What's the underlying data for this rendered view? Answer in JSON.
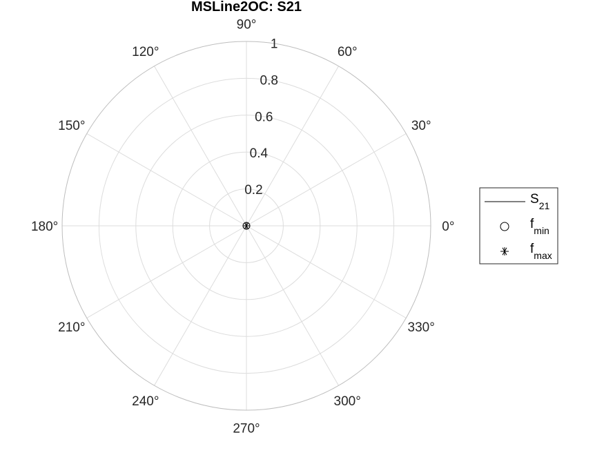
{
  "chart_data": {
    "type": "polar",
    "title": "MSLine2OC: S21",
    "r_ticks": [
      0.2,
      0.4,
      0.6,
      0.8,
      1
    ],
    "r_tick_labels": [
      "0.2",
      "0.4",
      "0.6",
      "0.8",
      "1"
    ],
    "rlim": [
      0,
      1
    ],
    "theta_ticks": [
      0,
      30,
      60,
      90,
      120,
      150,
      180,
      210,
      240,
      270,
      300,
      330
    ],
    "theta_tick_labels": [
      "0°",
      "30°",
      "60°",
      "90°",
      "120°",
      "150°",
      "180°",
      "210°",
      "240°",
      "270°",
      "300°",
      "330°"
    ],
    "grid": true,
    "legend_placement": "right",
    "series": [
      {
        "name": "S",
        "subscript": "21",
        "marker": "line",
        "r": [
          0,
          0
        ],
        "theta": [
          0,
          0
        ]
      },
      {
        "name": "f",
        "subscript": "min",
        "marker": "circle",
        "r": [
          0
        ],
        "theta": [
          0
        ]
      },
      {
        "name": "f",
        "subscript": "max",
        "marker": "asterisk",
        "r": [
          0
        ],
        "theta": [
          0
        ]
      }
    ],
    "colors": {
      "text": "#262626",
      "grid": "#dcdcdc",
      "series": "#000000"
    }
  }
}
